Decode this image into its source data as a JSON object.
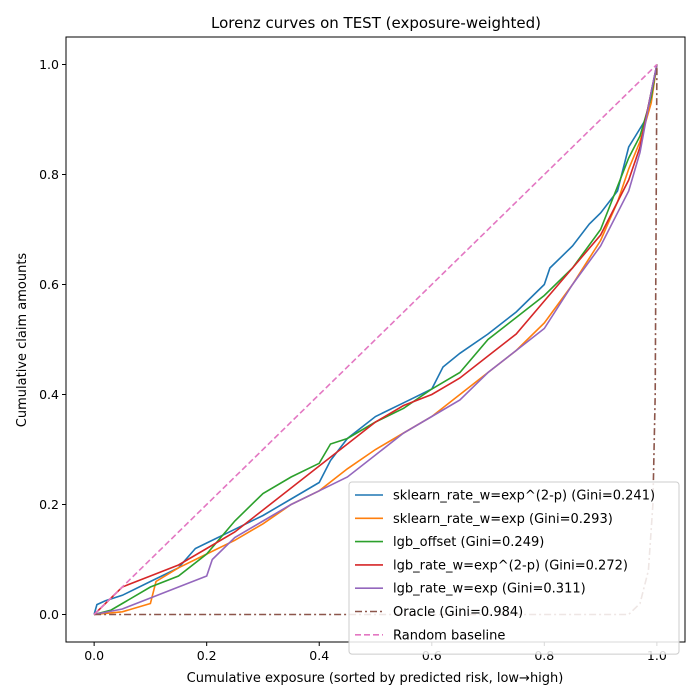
{
  "chart_data": {
    "type": "line",
    "title": "Lorenz curves on TEST (exposure-weighted)",
    "xlabel": "Cumulative exposure (sorted by predicted risk, low→high)",
    "ylabel": "Cumulative claim amounts",
    "xlim": [
      -0.05,
      1.05
    ],
    "ylim": [
      -0.05,
      1.05
    ],
    "xticks": [
      "0.0",
      "0.2",
      "0.4",
      "0.6",
      "0.8",
      "1.0"
    ],
    "yticks": [
      "0.0",
      "0.2",
      "0.4",
      "0.6",
      "0.8",
      "1.0"
    ],
    "grid": false,
    "legend_position": "lower-right",
    "series": [
      {
        "name": "sklearn_rate_w=exp^(2-p) (Gini=0.241)",
        "color": "#1f77b4",
        "dash": "solid",
        "points": [
          [
            0,
            0
          ],
          [
            0.005,
            0.018
          ],
          [
            0.02,
            0.025
          ],
          [
            0.05,
            0.035
          ],
          [
            0.1,
            0.06
          ],
          [
            0.15,
            0.085
          ],
          [
            0.18,
            0.12
          ],
          [
            0.2,
            0.13
          ],
          [
            0.25,
            0.155
          ],
          [
            0.3,
            0.18
          ],
          [
            0.35,
            0.21
          ],
          [
            0.4,
            0.24
          ],
          [
            0.42,
            0.28
          ],
          [
            0.45,
            0.32
          ],
          [
            0.5,
            0.36
          ],
          [
            0.55,
            0.385
          ],
          [
            0.6,
            0.41
          ],
          [
            0.62,
            0.45
          ],
          [
            0.65,
            0.475
          ],
          [
            0.7,
            0.51
          ],
          [
            0.75,
            0.55
          ],
          [
            0.8,
            0.6
          ],
          [
            0.81,
            0.63
          ],
          [
            0.85,
            0.67
          ],
          [
            0.88,
            0.71
          ],
          [
            0.9,
            0.73
          ],
          [
            0.93,
            0.77
          ],
          [
            0.95,
            0.85
          ],
          [
            0.98,
            0.9
          ],
          [
            1.0,
            1.0
          ]
        ]
      },
      {
        "name": "sklearn_rate_w=exp (Gini=0.293)",
        "color": "#ff7f0e",
        "dash": "solid",
        "points": [
          [
            0,
            0
          ],
          [
            0.05,
            0.005
          ],
          [
            0.1,
            0.02
          ],
          [
            0.11,
            0.06
          ],
          [
            0.15,
            0.085
          ],
          [
            0.2,
            0.11
          ],
          [
            0.25,
            0.135
          ],
          [
            0.3,
            0.165
          ],
          [
            0.35,
            0.2
          ],
          [
            0.4,
            0.225
          ],
          [
            0.45,
            0.265
          ],
          [
            0.5,
            0.3
          ],
          [
            0.55,
            0.33
          ],
          [
            0.6,
            0.36
          ],
          [
            0.65,
            0.4
          ],
          [
            0.7,
            0.44
          ],
          [
            0.75,
            0.48
          ],
          [
            0.8,
            0.53
          ],
          [
            0.85,
            0.6
          ],
          [
            0.9,
            0.68
          ],
          [
            0.93,
            0.75
          ],
          [
            0.95,
            0.81
          ],
          [
            0.97,
            0.86
          ],
          [
            0.99,
            0.93
          ],
          [
            1.0,
            1.0
          ]
        ]
      },
      {
        "name": "lgb_offset (Gini=0.249)",
        "color": "#2ca02c",
        "dash": "solid",
        "points": [
          [
            0,
            0
          ],
          [
            0.03,
            0.008
          ],
          [
            0.05,
            0.02
          ],
          [
            0.1,
            0.05
          ],
          [
            0.15,
            0.07
          ],
          [
            0.2,
            0.11
          ],
          [
            0.25,
            0.17
          ],
          [
            0.3,
            0.22
          ],
          [
            0.35,
            0.25
          ],
          [
            0.4,
            0.275
          ],
          [
            0.42,
            0.31
          ],
          [
            0.45,
            0.32
          ],
          [
            0.5,
            0.35
          ],
          [
            0.55,
            0.375
          ],
          [
            0.6,
            0.41
          ],
          [
            0.65,
            0.44
          ],
          [
            0.7,
            0.5
          ],
          [
            0.75,
            0.54
          ],
          [
            0.8,
            0.58
          ],
          [
            0.85,
            0.63
          ],
          [
            0.9,
            0.7
          ],
          [
            0.95,
            0.83
          ],
          [
            0.97,
            0.87
          ],
          [
            0.99,
            0.94
          ],
          [
            1.0,
            1.0
          ]
        ]
      },
      {
        "name": "lgb_rate_w=exp^(2-p) (Gini=0.272)",
        "color": "#d62728",
        "dash": "solid",
        "points": [
          [
            0,
            0
          ],
          [
            0.05,
            0.05
          ],
          [
            0.1,
            0.07
          ],
          [
            0.15,
            0.09
          ],
          [
            0.2,
            0.12
          ],
          [
            0.25,
            0.15
          ],
          [
            0.3,
            0.19
          ],
          [
            0.35,
            0.23
          ],
          [
            0.4,
            0.27
          ],
          [
            0.45,
            0.31
          ],
          [
            0.5,
            0.35
          ],
          [
            0.55,
            0.38
          ],
          [
            0.6,
            0.4
          ],
          [
            0.65,
            0.43
          ],
          [
            0.7,
            0.47
          ],
          [
            0.75,
            0.51
          ],
          [
            0.8,
            0.57
          ],
          [
            0.85,
            0.63
          ],
          [
            0.9,
            0.69
          ],
          [
            0.95,
            0.79
          ],
          [
            0.97,
            0.85
          ],
          [
            0.99,
            0.95
          ],
          [
            1.0,
            1.0
          ]
        ]
      },
      {
        "name": "lgb_rate_w=exp (Gini=0.311)",
        "color": "#9467bd",
        "dash": "solid",
        "points": [
          [
            0,
            0
          ],
          [
            0.05,
            0.01
          ],
          [
            0.1,
            0.03
          ],
          [
            0.15,
            0.05
          ],
          [
            0.2,
            0.07
          ],
          [
            0.21,
            0.1
          ],
          [
            0.25,
            0.14
          ],
          [
            0.3,
            0.17
          ],
          [
            0.35,
            0.2
          ],
          [
            0.4,
            0.225
          ],
          [
            0.45,
            0.25
          ],
          [
            0.5,
            0.29
          ],
          [
            0.55,
            0.33
          ],
          [
            0.6,
            0.36
          ],
          [
            0.65,
            0.39
          ],
          [
            0.7,
            0.44
          ],
          [
            0.75,
            0.48
          ],
          [
            0.8,
            0.52
          ],
          [
            0.85,
            0.6
          ],
          [
            0.9,
            0.67
          ],
          [
            0.95,
            0.77
          ],
          [
            0.97,
            0.84
          ],
          [
            0.99,
            0.95
          ],
          [
            1.0,
            1.0
          ]
        ]
      },
      {
        "name": "Oracle (Gini=0.984)",
        "color": "#8c564b",
        "dash": "dashdot",
        "points": [
          [
            0,
            0
          ],
          [
            0.95,
            0
          ],
          [
            0.97,
            0.02
          ],
          [
            0.985,
            0.08
          ],
          [
            0.993,
            0.2
          ],
          [
            0.997,
            0.4
          ],
          [
            1.0,
            1.0
          ]
        ]
      },
      {
        "name": "Random baseline",
        "color": "#e377c2",
        "dash": "dashed",
        "points": [
          [
            0,
            0
          ],
          [
            1,
            1
          ]
        ]
      }
    ]
  }
}
